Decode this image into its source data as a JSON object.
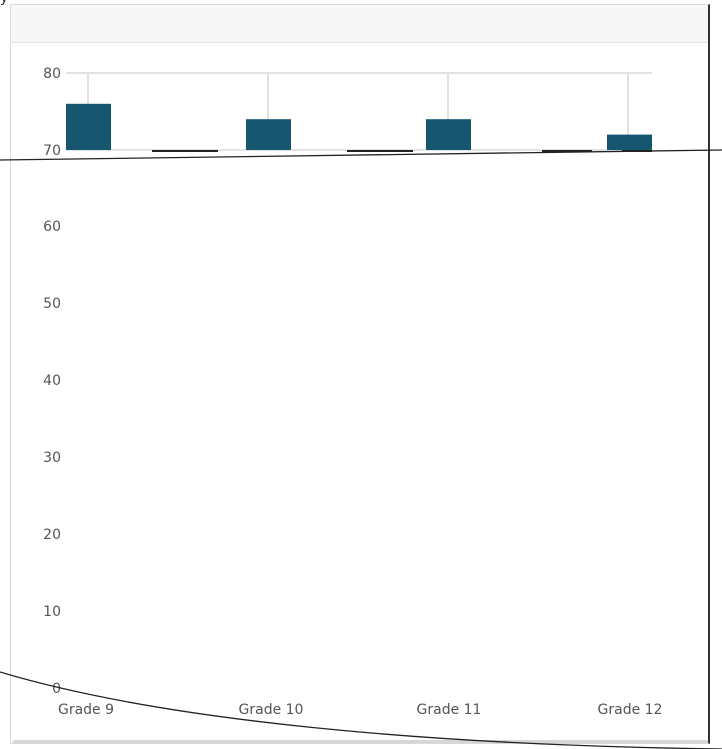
{
  "panel": {
    "top_fragment": "y"
  },
  "chart_data": {
    "type": "bar",
    "categories": [
      "Grade 9",
      "Grade 10",
      "Grade 11",
      "Grade 12"
    ],
    "series": [
      {
        "values": [
          76,
          74,
          74,
          72
        ],
        "color": "#16566f"
      }
    ],
    "y_ticks": [
      0,
      10,
      20,
      30,
      40,
      50,
      60,
      70,
      80
    ],
    "ylim": [
      0,
      80
    ],
    "grid": true,
    "colors": {
      "bar": "#16566f",
      "grid": "#d9d9d9",
      "text": "#555555",
      "overlay_stroke": "#222222"
    }
  }
}
